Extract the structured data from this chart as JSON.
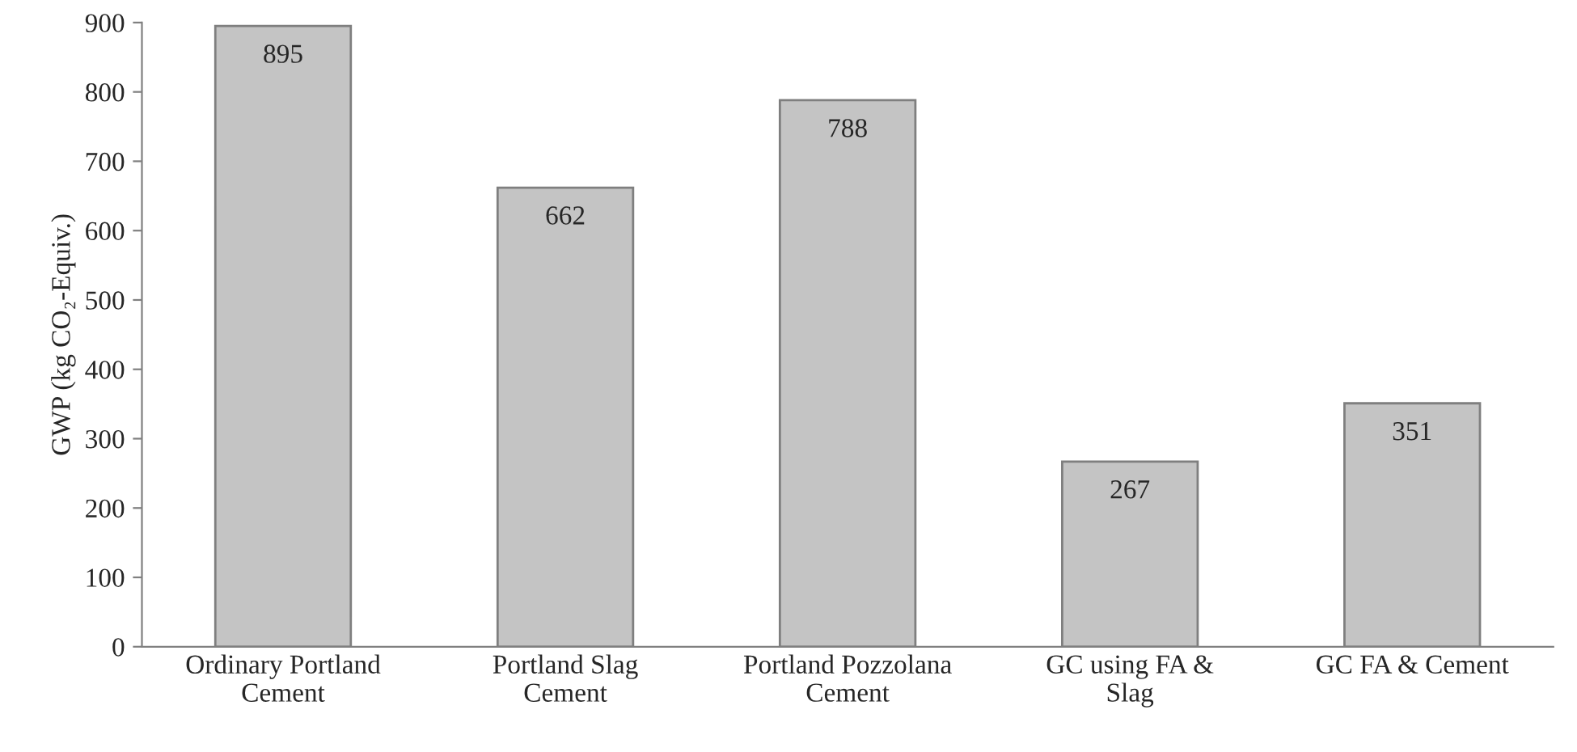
{
  "chart_data": {
    "type": "bar",
    "ylabel": "GWP (kg CO₂-Equiv.)",
    "categories": [
      "Ordinary Portland\nCement",
      "Portland Slag\nCement",
      "Portland Pozzolana\nCement",
      "GC using FA &\nSlag",
      "GC FA & Cement"
    ],
    "values": [
      895,
      662,
      788,
      267,
      351
    ],
    "color": "#c4c4c4",
    "ylim": [
      0,
      900
    ],
    "yticks": [
      0,
      100,
      200,
      300,
      400,
      500,
      600,
      700,
      800,
      900
    ],
    "data_labels": true,
    "grid": false,
    "legend": false
  }
}
